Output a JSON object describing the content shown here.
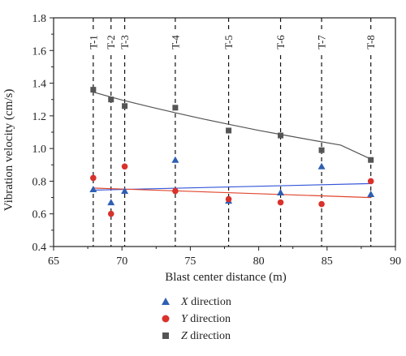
{
  "chart_data": {
    "type": "scatter",
    "xlabel": "Blast center distance (m)",
    "ylabel": "Vibration velocity (cm/s)",
    "xlim": [
      65,
      90
    ],
    "ylim": [
      0.4,
      1.8
    ],
    "xticks": [
      "65",
      "70",
      "75",
      "80",
      "85",
      "90"
    ],
    "yticks": [
      "0.4",
      "0.6",
      "0.8",
      "1.0",
      "1.2",
      "1.4",
      "1.6",
      "1.8"
    ],
    "grid": false,
    "legend_placement": "bottom",
    "reference_lines": [
      {
        "label": "T-1",
        "x": 67.9
      },
      {
        "label": "T-2",
        "x": 69.2
      },
      {
        "label": "T-3",
        "x": 70.2
      },
      {
        "label": "T-4",
        "x": 73.9
      },
      {
        "label": "T-5",
        "x": 77.8
      },
      {
        "label": "T-6",
        "x": 81.6
      },
      {
        "label": "T-7",
        "x": 84.6
      },
      {
        "label": "T-8",
        "x": 88.2
      }
    ],
    "series": [
      {
        "name_var": "X",
        "name_rest": " direction",
        "marker": "triangle",
        "color": "#2f5fb3",
        "fit_color": "#3355d6",
        "points": [
          [
            67.9,
            0.75
          ],
          [
            69.2,
            0.67
          ],
          [
            70.2,
            0.74
          ],
          [
            73.9,
            0.93
          ],
          [
            77.8,
            0.68
          ],
          [
            81.6,
            0.73
          ],
          [
            84.6,
            0.89
          ],
          [
            88.2,
            0.72
          ]
        ],
        "fit": {
          "kind": "linear",
          "x0": 67.9,
          "y0": 0.745,
          "x1": 88.2,
          "y1": 0.785
        }
      },
      {
        "name_var": "Y",
        "name_rest": " direction",
        "marker": "circle",
        "color": "#d9312b",
        "fit_color": "#e0452c",
        "points": [
          [
            67.9,
            0.82
          ],
          [
            69.2,
            0.6
          ],
          [
            70.2,
            0.89
          ],
          [
            73.9,
            0.74
          ],
          [
            77.8,
            0.69
          ],
          [
            81.6,
            0.67
          ],
          [
            84.6,
            0.66
          ],
          [
            88.2,
            0.8
          ]
        ],
        "fit": {
          "kind": "linear",
          "x0": 67.9,
          "y0": 0.758,
          "x1": 88.2,
          "y1": 0.7
        }
      },
      {
        "name_var": "Z",
        "name_rest": " direction",
        "marker": "square",
        "color": "#555555",
        "fit_color": "#555555",
        "points": [
          [
            67.9,
            1.36
          ],
          [
            69.2,
            1.3
          ],
          [
            70.2,
            1.26
          ],
          [
            73.9,
            1.25
          ],
          [
            77.8,
            1.11
          ],
          [
            81.6,
            1.08
          ],
          [
            84.6,
            0.99
          ],
          [
            88.2,
            0.93
          ]
        ],
        "fit": {
          "kind": "power",
          "x": [
            67.9,
            70,
            72,
            74,
            76,
            78,
            80,
            82,
            84,
            86,
            88.2
          ],
          "y": [
            1.345,
            1.297,
            1.256,
            1.217,
            1.18,
            1.145,
            1.111,
            1.08,
            1.05,
            1.021,
            0.935
          ]
        }
      }
    ]
  }
}
